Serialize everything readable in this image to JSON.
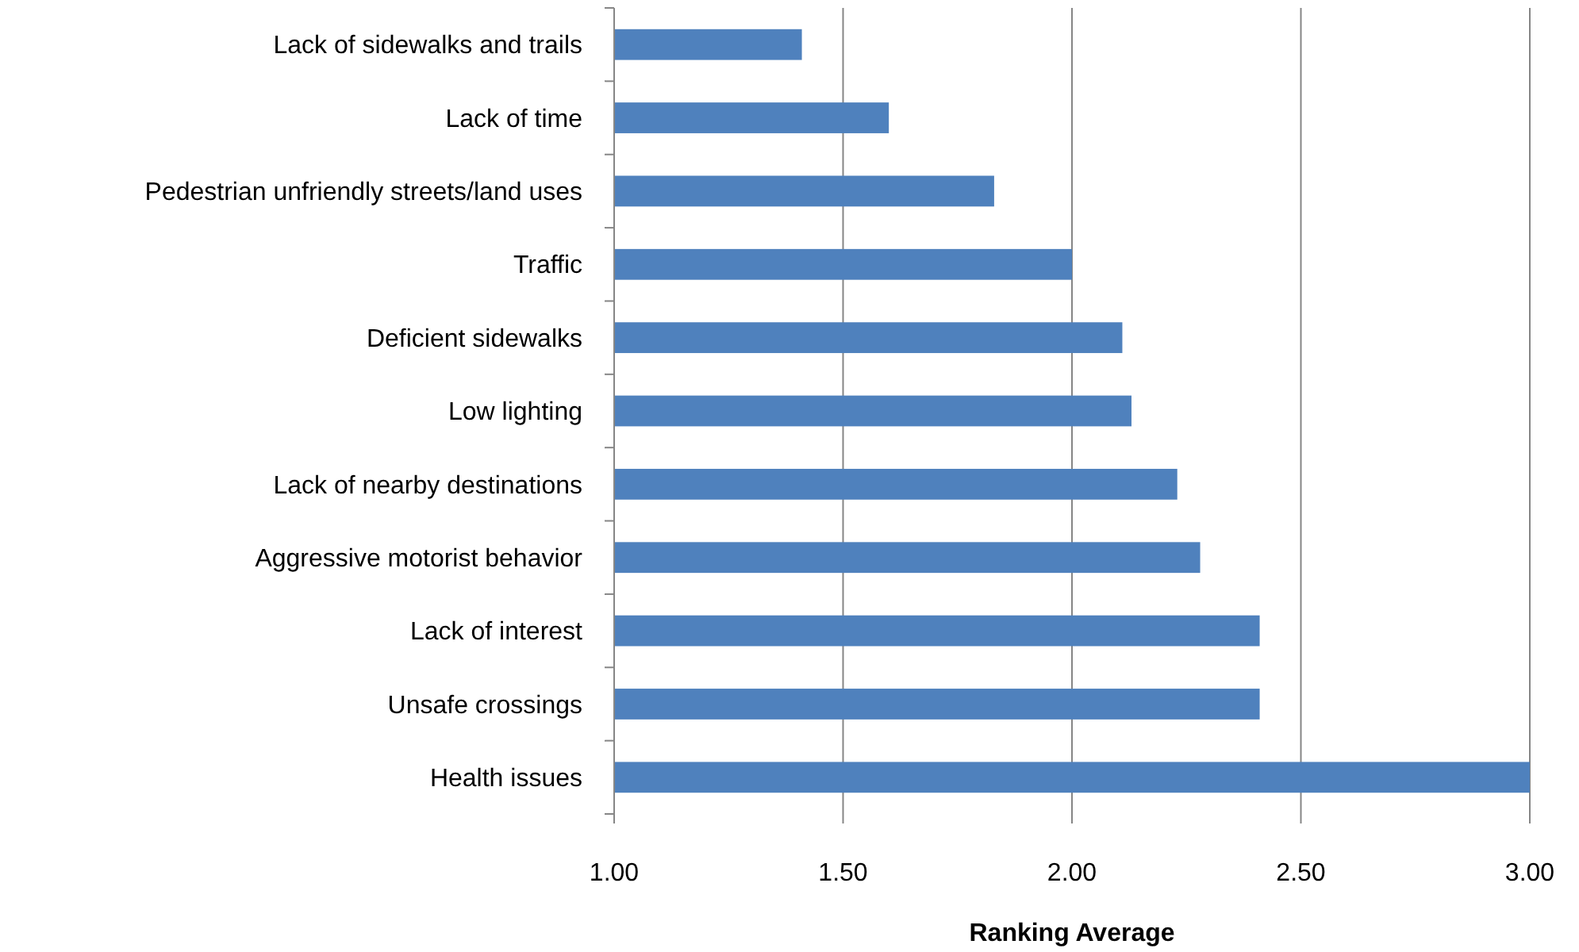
{
  "chart_data": {
    "type": "bar",
    "orientation": "horizontal",
    "xlabel": "Ranking Average",
    "categories": [
      "Lack of sidewalks and trails",
      "Lack of time",
      "Pedestrian unfriendly streets/land uses",
      "Traffic",
      "Deficient sidewalks",
      "Low lighting",
      "Lack of nearby destinations",
      "Aggressive motorist behavior",
      "Lack of interest",
      "Unsafe crossings",
      "Health issues"
    ],
    "values": [
      1.41,
      1.6,
      1.83,
      2.0,
      2.11,
      2.13,
      2.23,
      2.28,
      2.41,
      2.41,
      3.0
    ],
    "color": "#4f81bd",
    "xlim": [
      1,
      3
    ],
    "xticks": [
      {
        "value": 1,
        "label": "1.00"
      },
      {
        "value": 1.5,
        "label": "1.50"
      },
      {
        "value": 2,
        "label": "2.00"
      },
      {
        "value": 2.5,
        "label": "2.50"
      },
      {
        "value": 3,
        "label": "3.00"
      }
    ],
    "grid": "x"
  }
}
